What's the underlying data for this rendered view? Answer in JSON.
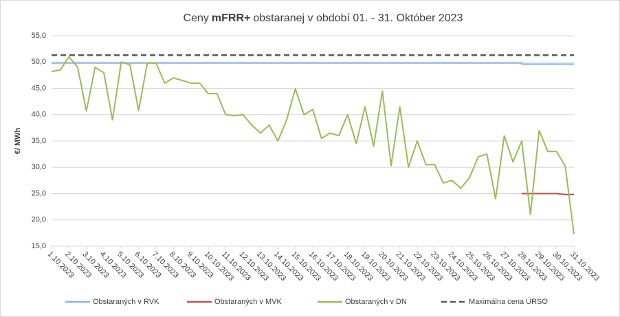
{
  "chart_data": {
    "type": "line",
    "title": [
      "Ceny",
      "mFRR+",
      "obstaranej v období 01. - 31. Október 2023"
    ],
    "y_label": "€/ MWh",
    "categories": [
      "1.10.2023",
      "2.10.2023",
      "3.10.2023",
      "4.10.2023",
      "5.10.2023",
      "6.10.2023",
      "7.10.2023",
      "8.10.2023",
      "9.10.2023",
      "10.10.2023",
      "11.10.2023",
      "12.10.2023",
      "13.10.2023",
      "14.10.2023",
      "15.10.2023",
      "16.10.2023",
      "17.10.2023",
      "18.10.2023",
      "19.10.2023",
      "20.10.2023",
      "21.10.2023",
      "22.10.2023",
      "23.10.2023",
      "24.10.2023",
      "25.10.2023",
      "26.10.2023",
      "27.10.2023",
      "28.10.2023",
      "29.10.2023",
      "30.10.2023",
      "31.10.2023"
    ],
    "xlim": [
      0,
      30
    ],
    "ylim": [
      15,
      55
    ],
    "yticks": [
      {
        "value": 15,
        "label": "15,0"
      },
      {
        "value": 20,
        "label": "20,0"
      },
      {
        "value": 25,
        "label": "25,0"
      },
      {
        "value": 30,
        "label": "30,0"
      },
      {
        "value": 35,
        "label": "35,0"
      },
      {
        "value": 40,
        "label": "40,0"
      },
      {
        "value": 45,
        "label": "45,0"
      },
      {
        "value": 50,
        "label": "50,0"
      },
      {
        "value": 55,
        "label": "55,0"
      }
    ],
    "grid": true,
    "legend": "bottom",
    "series": [
      {
        "name": "Obstaraných v RVK",
        "color": "#8eb4e3",
        "x": [
          0,
          27,
          27,
          30
        ],
        "values": [
          49.8,
          49.8,
          49.6,
          49.6
        ]
      },
      {
        "name": "Obstaraných v MVK",
        "color": "#c0504d",
        "x": [
          27,
          29,
          29.5,
          30
        ],
        "values": [
          25,
          25,
          24.8,
          24.8
        ]
      },
      {
        "name": "Obstaraných v DN",
        "color": "#9bbb59",
        "x": [
          0,
          0.5,
          1,
          1.5,
          2,
          2.5,
          3,
          3.5,
          4,
          4.5,
          5,
          5.5,
          6,
          6.5,
          7,
          7.5,
          8,
          8.5,
          9,
          9.5,
          10,
          10.5,
          11,
          11.5,
          12,
          12.5,
          13,
          13.5,
          14,
          14.5,
          15,
          15.5,
          16,
          16.5,
          17,
          17.5,
          18,
          18.5,
          19,
          19.5,
          20,
          20.5,
          21,
          21.5,
          22,
          22.5,
          23,
          23.5,
          24,
          24.5,
          25,
          25.5,
          26,
          26.5,
          27,
          27.5,
          28,
          28.5,
          29,
          29.5,
          30
        ],
        "values": [
          48.2,
          48.5,
          51,
          49,
          40.7,
          49,
          48,
          39,
          50,
          49.5,
          40.8,
          49.8,
          49.8,
          46,
          47,
          46.5,
          46,
          46,
          44,
          44,
          40,
          39.8,
          40,
          38,
          36.5,
          38,
          35,
          39,
          44.9,
          40,
          41,
          35.5,
          36.5,
          36,
          40,
          34.5,
          41.5,
          34,
          44.5,
          30.3,
          41.5,
          30,
          35,
          30.5,
          30.5,
          27,
          27.5,
          26,
          28,
          32,
          32.5,
          24,
          36,
          31,
          35,
          21,
          37,
          33,
          33,
          30.2,
          17.3
        ]
      },
      {
        "name": "Maximálna cena ÚRSO",
        "color": "#595959",
        "dash": true,
        "x": [
          0,
          30
        ],
        "values": [
          51.3,
          51.3
        ]
      }
    ]
  }
}
